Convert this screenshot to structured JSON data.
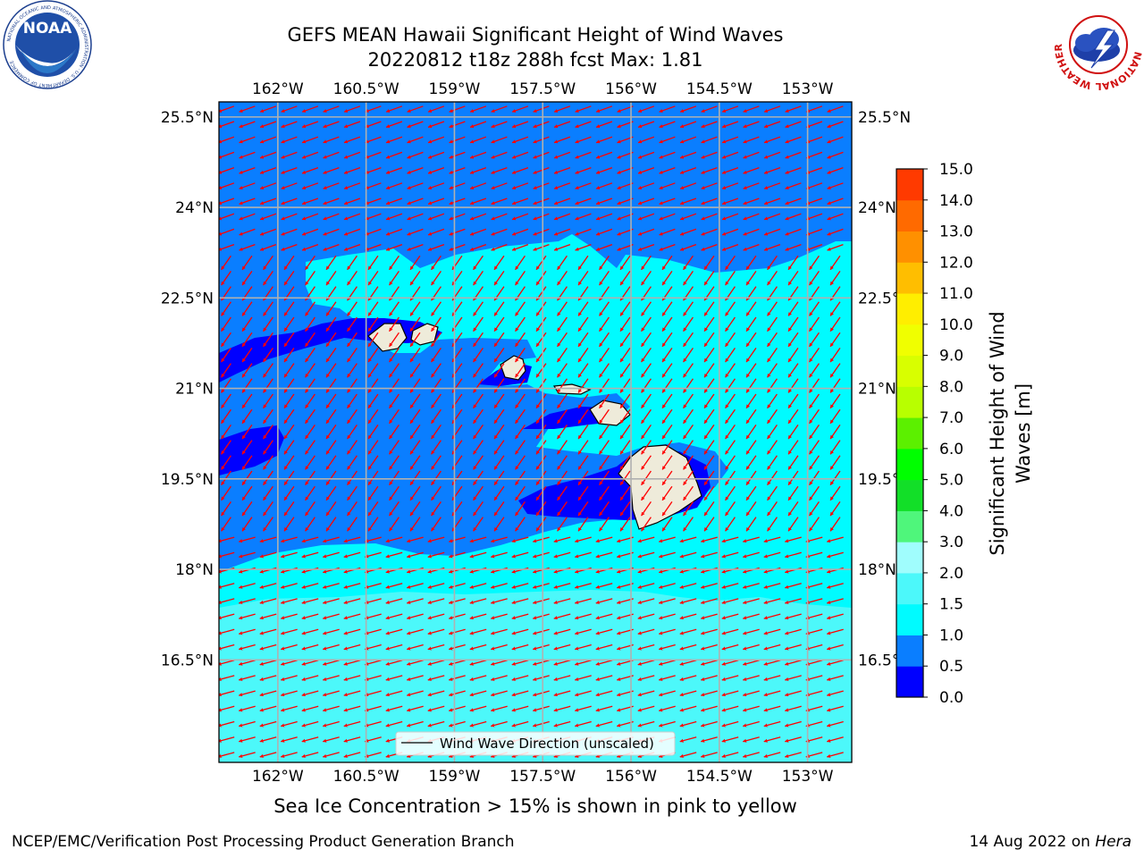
{
  "header": {
    "title_line1": "GEFS MEAN Hawaii Significant Height of Wind Waves",
    "title_line2": "20220812 t18z 288h fcst   Max: 1.81"
  },
  "logos": {
    "left": {
      "name": "noaa-logo",
      "text": "NOAA",
      "ring_text": "NATIONAL OCEANIC AND ATMOSPHERIC ADMINISTRATION · U.S. DEPARTMENT OF COMMERCE"
    },
    "right": {
      "name": "nws-logo",
      "ring_text": "NATIONAL WEATHER SERVICE"
    }
  },
  "map": {
    "lon_labels": [
      "162°W",
      "160.5°W",
      "159°W",
      "157.5°W",
      "156°W",
      "154.5°W",
      "153°W"
    ],
    "lat_labels": [
      "25.5°N",
      "24°N",
      "22.5°N",
      "21°N",
      "19.5°N",
      "18°N",
      "16.5°N"
    ],
    "lon_values": [
      -162,
      -160.5,
      -159,
      -157.5,
      -156,
      -154.5,
      -153
    ],
    "lat_values": [
      25.5,
      24,
      22.5,
      21,
      19.5,
      18,
      16.5
    ],
    "lon_range": [
      -163,
      -152.25
    ],
    "lat_range": [
      14.8,
      25.75
    ],
    "legend_label": "Wind Wave Direction (unscaled)",
    "arrow_color": "#ff0000",
    "land_color": "#eeebda",
    "grid_color": "#b0b0b0"
  },
  "colorbar": {
    "label_line1": "Significant Height of Wind",
    "label_line2": "Waves [m]",
    "ticks": [
      "0.0",
      "0.5",
      "1.0",
      "1.5",
      "2.0",
      "3.0",
      "4.0",
      "5.0",
      "6.0",
      "7.0",
      "8.0",
      "9.0",
      "10.0",
      "11.0",
      "12.0",
      "13.0",
      "14.0",
      "15.0"
    ],
    "colors": [
      "#0000ff",
      "#0a7eff",
      "#00fbff",
      "#4cf8fa",
      "#a0fdfd",
      "#4ff67b",
      "#12df28",
      "#00ff00",
      "#5cf000",
      "#b8ff00",
      "#d8ff00",
      "#f0ff00",
      "#ffee00",
      "#ffbe00",
      "#ff9000",
      "#ff6a00",
      "#ff3a00",
      "#ff0000"
    ]
  },
  "subtitle": "Sea Ice Concentration > 15% is shown in pink to yellow",
  "footer": {
    "left": "NCEP/EMC/Verification Post Processing Product Generation Branch",
    "right_prefix": "14 Aug 2022 on ",
    "right_host": "Hera"
  }
}
